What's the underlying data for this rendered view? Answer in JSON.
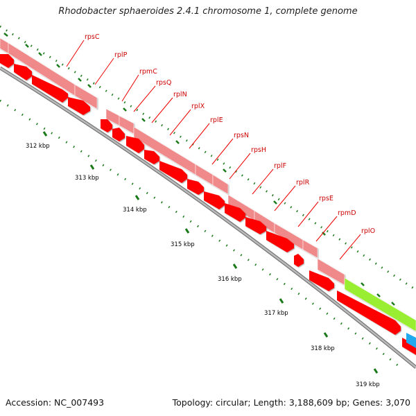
{
  "title": "Rhodobacter sphaeroides 2.4.1 chromosome 1, complete genome",
  "footer": {
    "accession": "Accession: NC_007493",
    "summary": "Topology: circular; Length: 3,188,609 bp; Genes: 3,070"
  },
  "gene_labels": [
    "rpsC",
    "rplP",
    "rpmC",
    "rpsQ",
    "rplN",
    "rplX",
    "rplE",
    "rpsN",
    "rpsH",
    "rplF",
    "rplR",
    "rpsE",
    "rpmD",
    "rplO"
  ],
  "ruler_labels": [
    "312 kbp",
    "313 kbp",
    "314 kbp",
    "315 kbp",
    "316 kbp",
    "317 kbp",
    "318 kbp",
    "319 kbp"
  ],
  "colors": {
    "cds_forward": "#ff0000",
    "gene_forward": "#f08a8a",
    "other_gene": "#99ee33",
    "other_gene_edge": "#22aaee",
    "backbone": "#999999",
    "gc_ticks": "#1a7a1a",
    "label_text": "#cc0000"
  }
}
